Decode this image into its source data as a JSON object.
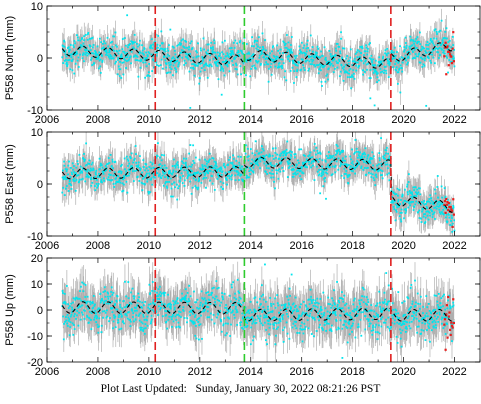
{
  "footer": {
    "label": "Plot Last Updated:",
    "value": "Sunday, January 30, 2022 08:21:26 PST"
  },
  "colors": {
    "error_bars": "#b0b0b0",
    "data_points": "#00e5ee",
    "model_line": "#000000",
    "recent_points": "#e8201e",
    "event_red": "#e02020",
    "event_green": "#2ecc2e"
  },
  "chart_data": [
    {
      "type": "scatter",
      "ylabel": "P558 North (mm)",
      "xlim": [
        2006,
        2023
      ],
      "ylim": [
        -10,
        10
      ],
      "yticks": [
        -10,
        0,
        10
      ],
      "xticks": [
        2006,
        2008,
        2010,
        2012,
        2014,
        2016,
        2018,
        2020,
        2022
      ],
      "grid": false,
      "events": [
        {
          "x": 2010.25,
          "color": "red"
        },
        {
          "x": 2013.75,
          "color": "green"
        },
        {
          "x": 2019.5,
          "color": "red"
        }
      ],
      "data_start": 2006.6,
      "data_end": 2022.0,
      "model": {
        "segments": [
          {
            "x0": 2006.6,
            "x1": 2013.75,
            "y0": 1.5,
            "slope": -0.28
          },
          {
            "x0": 2013.75,
            "x1": 2019.5,
            "y0": 0.6,
            "slope": -0.3
          },
          {
            "x0": 2019.5,
            "x1": 2022.0,
            "y0": 0.0,
            "slope": 1.0
          }
        ],
        "seasonal_amplitude": 1.0
      },
      "scatter_sigma": 1.6,
      "error_bar": 2.0
    },
    {
      "type": "scatter",
      "ylabel": "P558 East (mm)",
      "xlim": [
        2006,
        2023
      ],
      "ylim": [
        -10,
        10
      ],
      "yticks": [
        -10,
        0,
        10
      ],
      "xticks": [
        2006,
        2008,
        2010,
        2012,
        2014,
        2016,
        2018,
        2020,
        2022
      ],
      "grid": false,
      "events": [
        {
          "x": 2010.25,
          "color": "red"
        },
        {
          "x": 2013.75,
          "color": "green"
        },
        {
          "x": 2019.5,
          "color": "red"
        }
      ],
      "data_start": 2006.6,
      "data_end": 2022.0,
      "model": {
        "segments": [
          {
            "x0": 2006.6,
            "x1": 2013.75,
            "y0": 2.0,
            "slope": 0.05
          },
          {
            "x0": 2013.75,
            "x1": 2019.5,
            "y0": 4.2,
            "slope": -0.1
          },
          {
            "x0": 2019.5,
            "x1": 2022.0,
            "y0": -3.0,
            "slope": -0.6
          }
        ],
        "seasonal_amplitude": 1.0
      },
      "scatter_sigma": 1.5,
      "error_bar": 2.2
    },
    {
      "type": "scatter",
      "ylabel": "P558 Up (mm)",
      "xlim": [
        2006,
        2023
      ],
      "ylim": [
        -20,
        20
      ],
      "yticks": [
        -20,
        -10,
        0,
        10,
        20
      ],
      "xticks": [
        2006,
        2008,
        2010,
        2012,
        2014,
        2016,
        2018,
        2020,
        2022
      ],
      "grid": false,
      "events": [
        {
          "x": 2010.25,
          "color": "red"
        },
        {
          "x": 2013.75,
          "color": "green"
        },
        {
          "x": 2019.5,
          "color": "red"
        }
      ],
      "data_start": 2006.6,
      "data_end": 2022.0,
      "model": {
        "segments": [
          {
            "x0": 2006.6,
            "x1": 2013.75,
            "y0": 1.0,
            "slope": -0.05
          },
          {
            "x0": 2013.75,
            "x1": 2019.5,
            "y0": -2.0,
            "slope": 0.1
          },
          {
            "x0": 2019.5,
            "x1": 2022.0,
            "y0": -2.0,
            "slope": 0.0
          }
        ],
        "seasonal_amplitude": 2.2
      },
      "scatter_sigma": 4.0,
      "error_bar": 6.0
    }
  ]
}
